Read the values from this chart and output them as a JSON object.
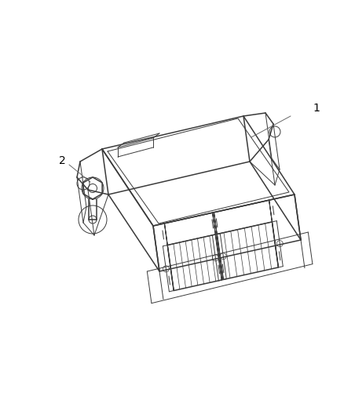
{
  "background_color": "#ffffff",
  "line_color": "#3a3a3a",
  "label_color": "#000000",
  "figsize": [
    4.39,
    5.33
  ],
  "dpi": 100,
  "label1": "1",
  "label2": "2",
  "font_size": 10,
  "lw_main": 1.1,
  "lw_thin": 0.7,
  "lw_detail": 0.5
}
